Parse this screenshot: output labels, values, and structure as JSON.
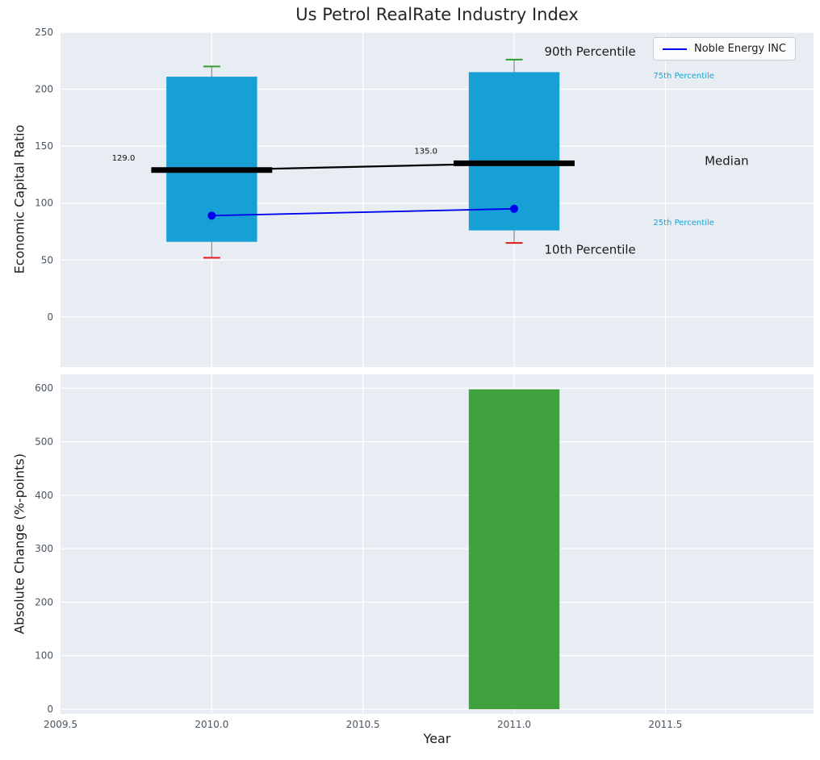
{
  "title": "Us Petrol RealRate Industry Index",
  "legend": {
    "label": "Noble Energy INC"
  },
  "colors": {
    "panel_bg": "#e8edf3",
    "grid": "#ffffff",
    "box_fill": "#17a0d6",
    "bar_fill": "#3fa23f",
    "median": "#000000",
    "company_line": "#0000ee",
    "whisker": "#8a8a8a",
    "cap_top": "#2e9e2e",
    "cap_bottom": "#e01a1a",
    "percentile_text": "#1ba3d4",
    "text_dark": "#1a1a1a",
    "tick_text": "#4a5560"
  },
  "chart_data": [
    {
      "type": "box",
      "title": "Us Petrol RealRate Industry Index",
      "ylabel": "Economic Capital Ratio",
      "xlim": [
        2009.5,
        2011.99
      ],
      "ylim": [
        -44,
        250
      ],
      "yticks": [
        0,
        50,
        100,
        150,
        200,
        250
      ],
      "ytick_labels": [
        "0",
        "50",
        "100",
        "150",
        "200",
        "250"
      ],
      "legend_entries": [
        "Noble Energy INC"
      ],
      "boxes": [
        {
          "x": 2010,
          "p10": 52,
          "p25": 66,
          "median": 129,
          "p75": 211,
          "p90": 220,
          "company_value": 89,
          "median_label": "129.0"
        },
        {
          "x": 2011,
          "p10": 65,
          "p25": 76,
          "median": 135,
          "p75": 215,
          "p90": 226,
          "company_value": 95,
          "median_label": "135.0"
        }
      ],
      "series": [
        {
          "name": "Noble Energy INC",
          "x": [
            2010,
            2011
          ],
          "y": [
            89,
            95
          ]
        },
        {
          "name": "Median",
          "x": [
            2010,
            2011
          ],
          "y": [
            129,
            135
          ]
        }
      ],
      "annotations": [
        {
          "text": "90th Percentile",
          "x": 2011.1,
          "y": 233,
          "size": "large",
          "color": "#1a1a1a"
        },
        {
          "text": "10th Percentile",
          "x": 2011.1,
          "y": 59,
          "size": "large",
          "color": "#1a1a1a"
        },
        {
          "text": "75th Percentile",
          "x": 2011.46,
          "y": 212,
          "size": "small",
          "color": "#1ba3d4"
        },
        {
          "text": "25th Percentile",
          "x": 2011.46,
          "y": 83,
          "size": "small",
          "color": "#1ba3d4"
        },
        {
          "text": "Median",
          "x": 2011.63,
          "y": 137,
          "size": "large",
          "color": "#1a1a1a"
        }
      ]
    },
    {
      "type": "bar",
      "ylabel": "Absolute Change (%-points)",
      "xlabel": "Year",
      "xlim": [
        2009.5,
        2011.99
      ],
      "ylim": [
        -9,
        626
      ],
      "yticks": [
        0,
        100,
        200,
        300,
        400,
        500,
        600
      ],
      "ytick_labels": [
        "0",
        "100",
        "200",
        "300",
        "400",
        "500",
        "600"
      ],
      "xticks": [
        2009.5,
        2010.0,
        2010.5,
        2011.0,
        2011.5
      ],
      "xtick_labels": [
        "2009.5",
        "2010.0",
        "2010.5",
        "2011.0",
        "2011.5"
      ],
      "bars": [
        {
          "x": 2011,
          "value": 598
        }
      ],
      "bar_width": 0.3
    }
  ]
}
